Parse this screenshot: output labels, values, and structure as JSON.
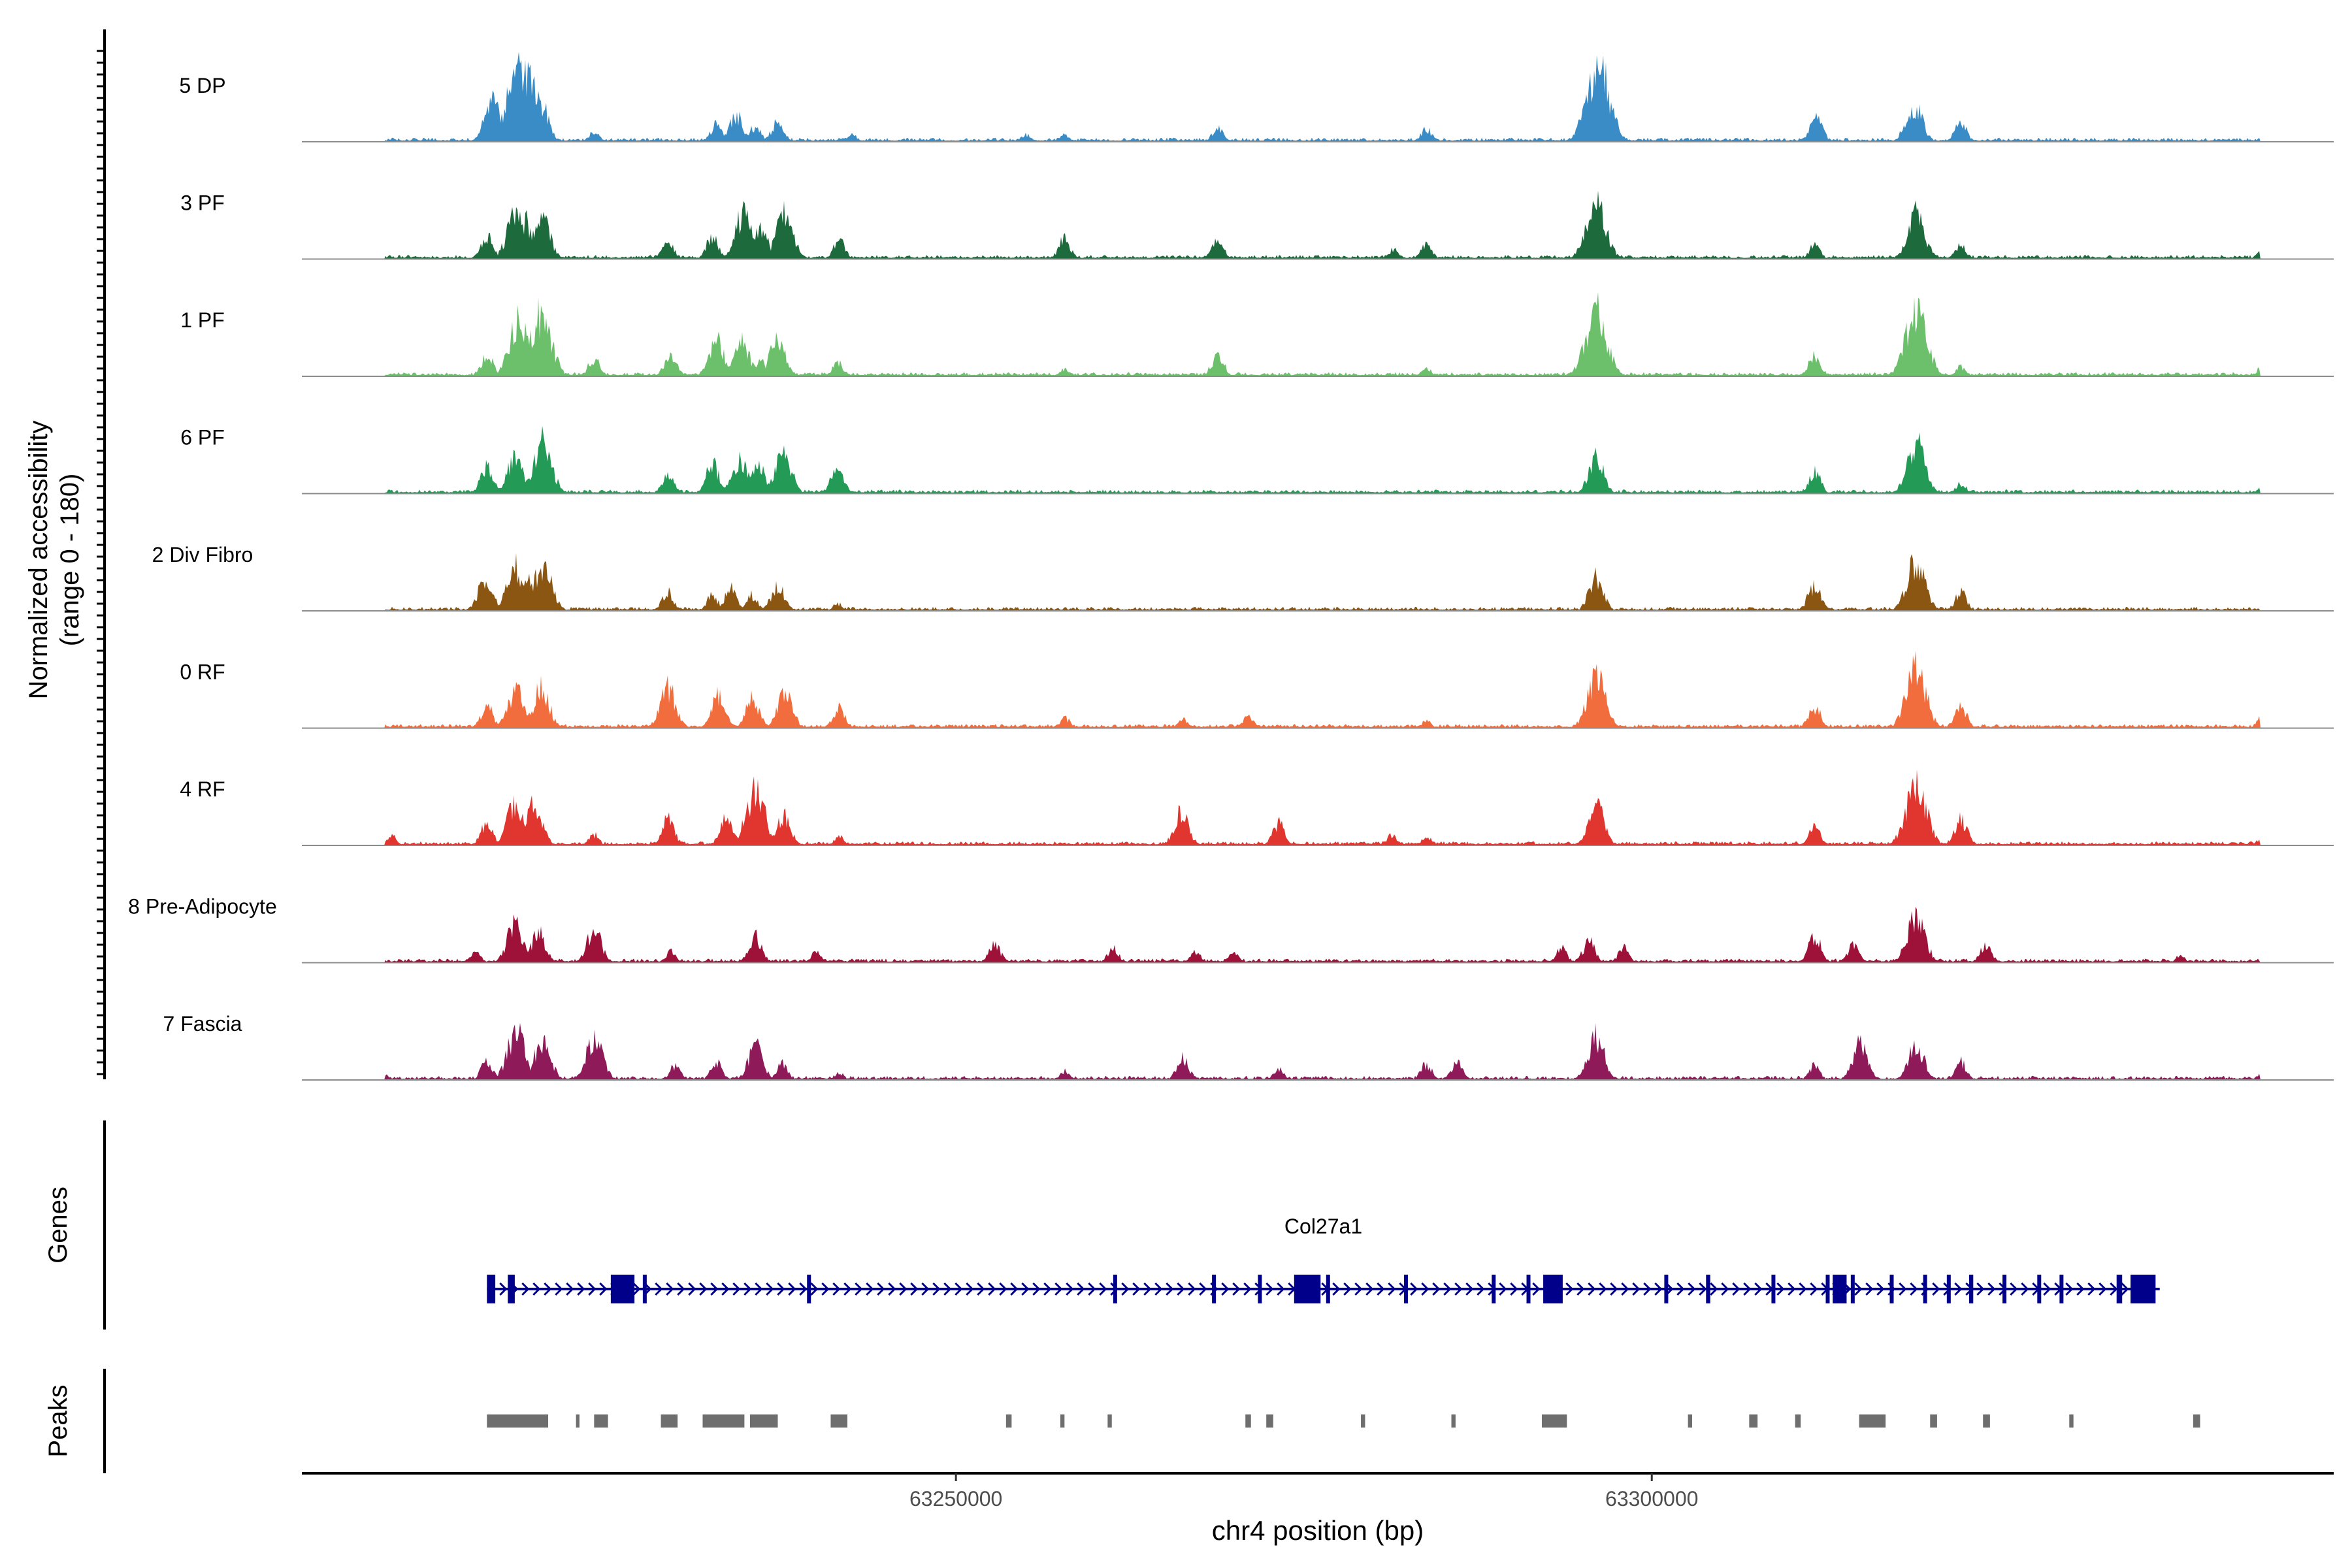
{
  "chart_data": {
    "type": "area",
    "title": "",
    "y_axis_label_line1": "Normalized accessibility",
    "y_axis_label_line2": "(range 0 - 180)",
    "ylim": [
      0,
      180
    ],
    "xlabel": "chr4 position (bp)",
    "xlim": [
      63203000,
      63349000
    ],
    "x_ticks": [
      63250000,
      63300000
    ],
    "x_tick_labels": [
      "63250000",
      "63300000"
    ],
    "tracks": [
      {
        "name": "5 DP",
        "color": "#3a8cc6",
        "peaks": [
          [
            63216700,
            0.55
          ],
          [
            63218600,
            1.0
          ],
          [
            63219300,
            0.85
          ],
          [
            63220200,
            0.5
          ],
          [
            63224000,
            0.15
          ],
          [
            63232800,
            0.25
          ],
          [
            63234200,
            0.36
          ],
          [
            63235600,
            0.22
          ],
          [
            63237200,
            0.28
          ],
          [
            63242500,
            0.12
          ],
          [
            63255000,
            0.1
          ],
          [
            63257800,
            0.1
          ],
          [
            63268800,
            0.2
          ],
          [
            63283800,
            0.18
          ],
          [
            63296200,
            1.0
          ],
          [
            63295300,
            0.45
          ],
          [
            63311800,
            0.34
          ],
          [
            63319000,
            0.45
          ],
          [
            63318400,
            0.28
          ],
          [
            63322200,
            0.26
          ],
          [
            63343900,
            0.06
          ]
        ]
      },
      {
        "name": "3 PF",
        "color": "#1d6a3c",
        "peaks": [
          [
            63216300,
            0.3
          ],
          [
            63218300,
            0.6
          ],
          [
            63219000,
            0.52
          ],
          [
            63220200,
            0.6
          ],
          [
            63229300,
            0.24
          ],
          [
            63232500,
            0.3
          ],
          [
            63234700,
            0.6
          ],
          [
            63236000,
            0.42
          ],
          [
            63237700,
            0.6
          ],
          [
            63241600,
            0.25
          ],
          [
            63257800,
            0.27
          ],
          [
            63268800,
            0.25
          ],
          [
            63281500,
            0.15
          ],
          [
            63283800,
            0.2
          ],
          [
            63296000,
            0.8
          ],
          [
            63311700,
            0.2
          ],
          [
            63319000,
            0.62
          ],
          [
            63322200,
            0.2
          ],
          [
            63343900,
            0.14
          ]
        ]
      },
      {
        "name": "1 PF",
        "color": "#6cc06c",
        "peaks": [
          [
            63216300,
            0.3
          ],
          [
            63218600,
            0.75
          ],
          [
            63220200,
            0.85
          ],
          [
            63224000,
            0.25
          ],
          [
            63229500,
            0.3
          ],
          [
            63232800,
            0.5
          ],
          [
            63234600,
            0.5
          ],
          [
            63236000,
            0.22
          ],
          [
            63237200,
            0.5
          ],
          [
            63241500,
            0.2
          ],
          [
            63257800,
            0.1
          ],
          [
            63268800,
            0.3
          ],
          [
            63283800,
            0.13
          ],
          [
            63296000,
            0.9
          ],
          [
            63311700,
            0.3
          ],
          [
            63319000,
            0.9
          ],
          [
            63322200,
            0.13
          ],
          [
            63343900,
            0.15
          ]
        ]
      },
      {
        "name": "6 PF",
        "color": "#239b56",
        "peaks": [
          [
            63216300,
            0.35
          ],
          [
            63218300,
            0.5
          ],
          [
            63220300,
            0.7
          ],
          [
            63229300,
            0.28
          ],
          [
            63232500,
            0.4
          ],
          [
            63234500,
            0.5
          ],
          [
            63235800,
            0.4
          ],
          [
            63237600,
            0.55
          ],
          [
            63241500,
            0.35
          ],
          [
            63296000,
            0.5
          ],
          [
            63311700,
            0.3
          ],
          [
            63319000,
            0.7
          ],
          [
            63322200,
            0.15
          ],
          [
            63343900,
            0.1
          ]
        ]
      },
      {
        "name": "2 Div Fibro",
        "color": "#8b5512",
        "peaks": [
          [
            63216200,
            0.45
          ],
          [
            63218300,
            0.6
          ],
          [
            63219200,
            0.45
          ],
          [
            63220300,
            0.65
          ],
          [
            63229300,
            0.25
          ],
          [
            63232500,
            0.22
          ],
          [
            63233800,
            0.3
          ],
          [
            63235300,
            0.22
          ],
          [
            63237200,
            0.35
          ],
          [
            63241500,
            0.1
          ],
          [
            63296000,
            0.45
          ],
          [
            63311700,
            0.35
          ],
          [
            63319000,
            0.7
          ],
          [
            63322200,
            0.25
          ],
          [
            63343900,
            0.05
          ]
        ]
      },
      {
        "name": "0 RF",
        "color": "#f26d3d",
        "peaks": [
          [
            63216300,
            0.3
          ],
          [
            63218400,
            0.55
          ],
          [
            63220200,
            0.55
          ],
          [
            63229300,
            0.55
          ],
          [
            63233000,
            0.45
          ],
          [
            63235400,
            0.4
          ],
          [
            63237700,
            0.5
          ],
          [
            63241600,
            0.27
          ],
          [
            63257800,
            0.15
          ],
          [
            63266300,
            0.12
          ],
          [
            63271000,
            0.18
          ],
          [
            63283800,
            0.1
          ],
          [
            63296000,
            0.7
          ],
          [
            63311700,
            0.3
          ],
          [
            63319000,
            0.8
          ],
          [
            63322200,
            0.3
          ],
          [
            63343900,
            0.18
          ]
        ]
      },
      {
        "name": "4 RF",
        "color": "#e0362f",
        "peaks": [
          [
            63209500,
            0.12
          ],
          [
            63216300,
            0.3
          ],
          [
            63218300,
            0.55
          ],
          [
            63219700,
            0.55
          ],
          [
            63224000,
            0.15
          ],
          [
            63229300,
            0.35
          ],
          [
            63233500,
            0.35
          ],
          [
            63235600,
            0.75
          ],
          [
            63237600,
            0.42
          ],
          [
            63241600,
            0.12
          ],
          [
            63266200,
            0.45
          ],
          [
            63273200,
            0.3
          ],
          [
            63281300,
            0.14
          ],
          [
            63283800,
            0.12
          ],
          [
            63296000,
            0.55
          ],
          [
            63311700,
            0.25
          ],
          [
            63319000,
            0.85
          ],
          [
            63322200,
            0.35
          ],
          [
            63343900,
            0.12
          ]
        ]
      },
      {
        "name": "8 Pre-Adipocyte",
        "color": "#9e1138",
        "peaks": [
          [
            63215500,
            0.15
          ],
          [
            63218300,
            0.52
          ],
          [
            63220000,
            0.4
          ],
          [
            63224000,
            0.45
          ],
          [
            63229500,
            0.15
          ],
          [
            63235600,
            0.35
          ],
          [
            63240000,
            0.15
          ],
          [
            63252800,
            0.25
          ],
          [
            63261300,
            0.2
          ],
          [
            63267200,
            0.15
          ],
          [
            63270000,
            0.14
          ],
          [
            63293500,
            0.2
          ],
          [
            63295500,
            0.3
          ],
          [
            63298000,
            0.2
          ],
          [
            63311700,
            0.35
          ],
          [
            63314500,
            0.25
          ],
          [
            63319000,
            0.65
          ],
          [
            63324000,
            0.25
          ],
          [
            63338000,
            0.1
          ],
          [
            63346000,
            0.1
          ]
        ]
      },
      {
        "name": "7 Fascia",
        "color": "#8e1a5a",
        "peaks": [
          [
            63209000,
            0.07
          ],
          [
            63216300,
            0.25
          ],
          [
            63218400,
            0.65
          ],
          [
            63220300,
            0.55
          ],
          [
            63224000,
            0.6
          ],
          [
            63229800,
            0.2
          ],
          [
            63232800,
            0.25
          ],
          [
            63235600,
            0.45
          ],
          [
            63237500,
            0.22
          ],
          [
            63241600,
            0.1
          ],
          [
            63257800,
            0.12
          ],
          [
            63266300,
            0.3
          ],
          [
            63273200,
            0.15
          ],
          [
            63283800,
            0.22
          ],
          [
            63286000,
            0.25
          ],
          [
            63296000,
            0.6
          ],
          [
            63311700,
            0.2
          ],
          [
            63315000,
            0.5
          ],
          [
            63319000,
            0.5
          ],
          [
            63322200,
            0.25
          ],
          [
            63343900,
            0.1
          ]
        ]
      }
    ],
    "genes_label": "Genes",
    "gene": {
      "name": "Col27a1",
      "color": "#00008b",
      "start": 63216300,
      "end": 63336500,
      "exons_small": [
        [
          63216300,
          63216900
        ],
        [
          63217800,
          63218300
        ],
        [
          63227500,
          63227600
        ],
        [
          63239300,
          63239500
        ],
        [
          63261300,
          63261400
        ],
        [
          63268400,
          63268500
        ],
        [
          63271700,
          63271800
        ],
        [
          63276600,
          63276700
        ],
        [
          63282200,
          63282400
        ],
        [
          63288500,
          63288600
        ],
        [
          63291000,
          63291200
        ],
        [
          63300900,
          63301100
        ],
        [
          63303900,
          63304200
        ],
        [
          63308600,
          63308800
        ],
        [
          63312500,
          63312700
        ],
        [
          63314300,
          63314400
        ],
        [
          63317100,
          63317300
        ],
        [
          63319500,
          63319700
        ],
        [
          63321200,
          63321300
        ],
        [
          63322800,
          63323100
        ],
        [
          63325200,
          63325300
        ],
        [
          63327700,
          63327800
        ],
        [
          63329300,
          63329400
        ],
        [
          63333400,
          63333800
        ]
      ],
      "exons_large": [
        [
          63225200,
          63226900
        ],
        [
          63274300,
          63276200
        ],
        [
          63292200,
          63293600
        ],
        [
          63313000,
          63314000
        ],
        [
          63334400,
          63336200
        ]
      ]
    },
    "peaks_label": "Peaks",
    "peak_regions": [
      [
        63216300,
        63220700
      ],
      [
        63222700,
        63222950
      ],
      [
        63224000,
        63225000
      ],
      [
        63228800,
        63230000
      ],
      [
        63231800,
        63234800
      ],
      [
        63235200,
        63237200
      ],
      [
        63241000,
        63242200
      ],
      [
        63253600,
        63254000
      ],
      [
        63257500,
        63257800
      ],
      [
        63260900,
        63261200
      ],
      [
        63270800,
        63271200
      ],
      [
        63272300,
        63272800
      ],
      [
        63279100,
        63279400
      ],
      [
        63285600,
        63285900
      ],
      [
        63292100,
        63293900
      ],
      [
        63302600,
        63302900
      ],
      [
        63307000,
        63307600
      ],
      [
        63310300,
        63310700
      ],
      [
        63314900,
        63316800
      ],
      [
        63320000,
        63320500
      ],
      [
        63323800,
        63324300
      ],
      [
        63330000,
        63330300
      ],
      [
        63338900,
        63339400
      ]
    ]
  }
}
